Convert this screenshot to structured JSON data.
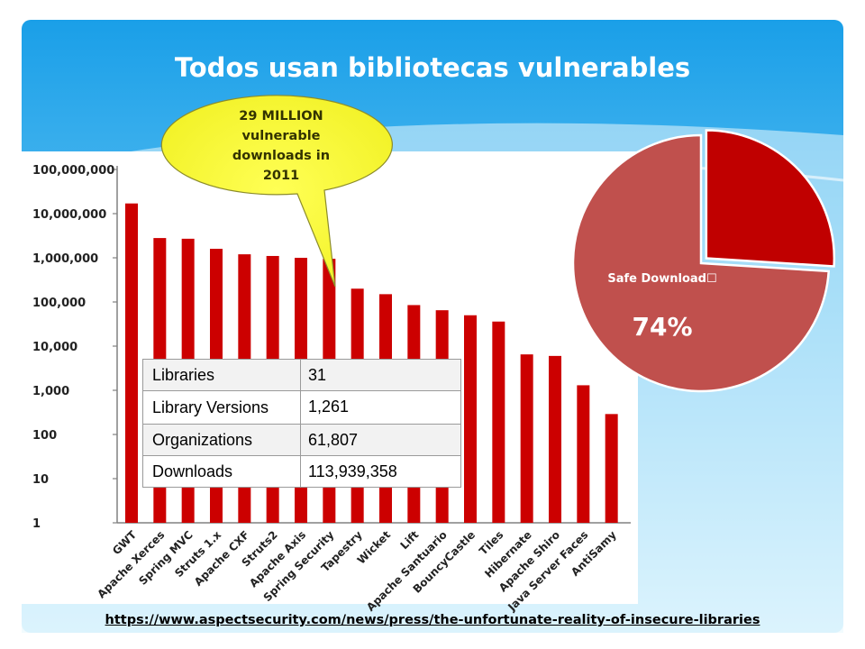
{
  "slide": {
    "title": "Todos usan bibliotecas vulnerables",
    "source_url": "https://www.aspectsecurity.com/news/press/the-unfortunate-reality-of-insecure-libraries",
    "colors": {
      "sky_top": "#1a9fe8",
      "sky_light": "#bfe6fb",
      "bar": "#cc0000",
      "bubble": "#ffff33",
      "pie_safe": "#c0504d",
      "pie_vulnerable": "#c00000"
    }
  },
  "callout": {
    "lines": [
      "29 MILLION",
      "vulnerable",
      "downloads in",
      "2011"
    ]
  },
  "stats_table": {
    "rows": [
      {
        "label": "Libraries",
        "value": "31"
      },
      {
        "label": "Library Versions",
        "value": "1,261"
      },
      {
        "label": "Organizations",
        "value": "61,807"
      },
      {
        "label": "Downloads",
        "value": "113,939,358"
      }
    ]
  },
  "pie": {
    "label": "Safe Download",
    "label_glyph": "☐",
    "percent_text": "74%"
  },
  "chart_data": [
    {
      "type": "bar",
      "scale": "log",
      "ylim": [
        1,
        100000000
      ],
      "yticks": [
        "100,000,000",
        "10,000,000",
        "1,000,000",
        "100,000",
        "10,000",
        "1,000",
        "100",
        "10",
        "1"
      ],
      "categories": [
        "GWT",
        "Apache Xerces",
        "Spring MVC",
        "Struts 1.x",
        "Apache CXF",
        "Struts2",
        "Apache Axis",
        "Spring Security",
        "Tapestry",
        "Wicket",
        "Lift",
        "Apache Santuario",
        "BouncyCastle",
        "Tiles",
        "Hibernate",
        "Apache Shiro",
        "Java Server Faces",
        "AntiSamy"
      ],
      "values": [
        17000000,
        2800000,
        2700000,
        1600000,
        1200000,
        1100000,
        1000000,
        950000,
        200000,
        150000,
        85000,
        65000,
        50000,
        36000,
        6500,
        6000,
        1300,
        290
      ],
      "grid": false,
      "legend": "none"
    },
    {
      "type": "pie",
      "slices": [
        {
          "name": "Safe Download",
          "value": 74
        },
        {
          "name": "",
          "value": 26
        }
      ]
    }
  ]
}
